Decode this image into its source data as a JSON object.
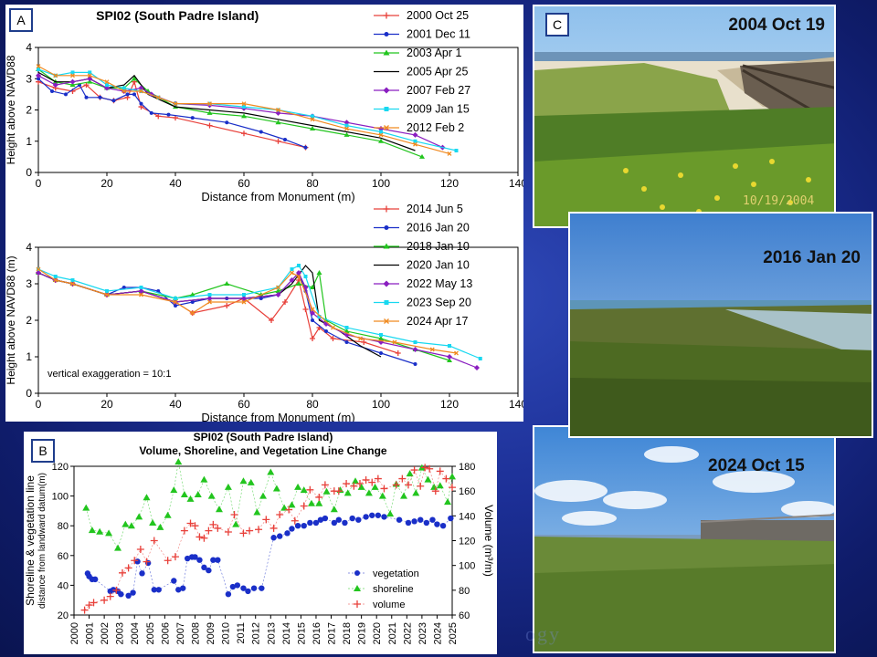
{
  "panels": {
    "a": "A",
    "b": "B",
    "c": "C"
  },
  "photos": [
    {
      "label": "2004 Oct 19",
      "stamp": "10/19/2004"
    },
    {
      "label": "2016 Jan 20",
      "stamp": ""
    },
    {
      "label": "2024 Oct 15",
      "stamp": ""
    }
  ],
  "watermark": "ogy",
  "chart_data": [
    {
      "type": "line",
      "title": "SPI02 (South Padre Island)",
      "xlabel": "Distance from Monument (m)",
      "ylabel": "Height above NAVD88",
      "xlim": [
        0,
        140
      ],
      "ylim": [
        0,
        4
      ],
      "xticks": [
        0,
        20,
        40,
        60,
        80,
        100,
        120,
        140
      ],
      "yticks": [
        0,
        1,
        2,
        3,
        4
      ],
      "legend_position": "right",
      "series": [
        {
          "name": "2000 Oct 25",
          "color": "#e8403a",
          "marker": "plus",
          "x": [
            0,
            5,
            10,
            14,
            18,
            22,
            26,
            28,
            30,
            35,
            40,
            50,
            60,
            70,
            78
          ],
          "y": [
            2.9,
            2.7,
            2.6,
            2.8,
            2.4,
            2.3,
            2.4,
            2.9,
            2.1,
            1.8,
            1.75,
            1.5,
            1.25,
            1.0,
            0.8
          ]
        },
        {
          "name": "2001 Dec 11",
          "color": "#1a2fc8",
          "marker": "circle",
          "x": [
            0,
            4,
            8,
            12,
            14,
            18,
            22,
            26,
            28,
            30,
            33,
            38,
            45,
            55,
            65,
            72,
            78
          ],
          "y": [
            3.0,
            2.6,
            2.5,
            2.8,
            2.4,
            2.4,
            2.3,
            2.5,
            2.5,
            2.2,
            1.9,
            1.85,
            1.75,
            1.6,
            1.3,
            1.05,
            0.8
          ]
        },
        {
          "name": "2003 Apr 1",
          "color": "#22c51e",
          "marker": "triangle",
          "x": [
            0,
            5,
            10,
            15,
            20,
            25,
            28,
            32,
            40,
            50,
            60,
            70,
            80,
            90,
            100,
            112
          ],
          "y": [
            3.3,
            2.9,
            2.8,
            2.9,
            2.7,
            2.7,
            3.0,
            2.6,
            2.1,
            1.9,
            1.8,
            1.6,
            1.4,
            1.2,
            1.0,
            0.5
          ]
        },
        {
          "name": "2005 Apr 25",
          "color": "#000000",
          "marker": "none",
          "x": [
            0,
            5,
            10,
            15,
            20,
            25,
            28,
            32,
            40,
            50,
            60,
            70,
            80,
            90,
            100,
            110
          ],
          "y": [
            3.2,
            2.9,
            2.9,
            3.0,
            2.7,
            2.8,
            3.1,
            2.5,
            2.1,
            2.0,
            1.9,
            1.7,
            1.5,
            1.3,
            1.1,
            0.7
          ]
        },
        {
          "name": "2007 Feb 27",
          "color": "#8a1ec0",
          "marker": "diamond",
          "x": [
            0,
            5,
            10,
            15,
            20,
            25,
            30,
            33,
            40,
            50,
            60,
            70,
            80,
            90,
            100,
            110,
            118
          ],
          "y": [
            3.1,
            2.8,
            2.9,
            3.0,
            2.7,
            2.6,
            2.7,
            2.5,
            2.2,
            2.15,
            2.05,
            1.9,
            1.8,
            1.6,
            1.4,
            1.2,
            0.8
          ]
        },
        {
          "name": "2009 Jan 15",
          "color": "#18d8f0",
          "marker": "square",
          "x": [
            0,
            5,
            10,
            15,
            20,
            25,
            30,
            35,
            40,
            50,
            60,
            70,
            80,
            90,
            100,
            110,
            122
          ],
          "y": [
            3.3,
            3.1,
            3.2,
            3.2,
            2.8,
            2.7,
            2.6,
            2.4,
            2.2,
            2.2,
            2.1,
            2.0,
            1.8,
            1.5,
            1.3,
            1.0,
            0.7
          ]
        },
        {
          "name": "2012 Feb 2",
          "color": "#f08a20",
          "marker": "x",
          "x": [
            0,
            5,
            10,
            15,
            20,
            25,
            30,
            35,
            40,
            50,
            60,
            70,
            80,
            90,
            100,
            110,
            120
          ],
          "y": [
            3.4,
            3.1,
            3.1,
            3.1,
            2.9,
            2.6,
            2.6,
            2.4,
            2.2,
            2.2,
            2.2,
            2.0,
            1.7,
            1.4,
            1.2,
            0.9,
            0.6
          ]
        }
      ]
    },
    {
      "type": "line",
      "title": "",
      "xlabel": "Distance from Monument (m)",
      "ylabel": "Height above NAVD88 (m)",
      "xlim": [
        0,
        140
      ],
      "ylim": [
        0,
        4
      ],
      "xticks": [
        0,
        20,
        40,
        60,
        80,
        100,
        120,
        140
      ],
      "yticks": [
        0,
        1,
        2,
        3,
        4
      ],
      "annotation": "vertical exaggeration = 10:1",
      "legend_position": "right",
      "series": [
        {
          "name": "2014 Jun 5",
          "color": "#e8403a",
          "marker": "plus",
          "x": [
            0,
            5,
            10,
            20,
            30,
            40,
            45,
            55,
            60,
            68,
            72,
            76,
            78,
            80,
            82,
            86,
            95,
            105
          ],
          "y": [
            3.3,
            3.1,
            3.0,
            2.7,
            2.8,
            2.5,
            2.2,
            2.4,
            2.6,
            2.0,
            2.5,
            3.1,
            2.3,
            1.5,
            1.8,
            1.5,
            1.4,
            1.1
          ]
        },
        {
          "name": "2016 Jan 20",
          "color": "#1a2fc8",
          "marker": "circle",
          "x": [
            0,
            5,
            10,
            20,
            25,
            30,
            35,
            40,
            45,
            50,
            55,
            60,
            65,
            70,
            74,
            76,
            78,
            80,
            84,
            90,
            100,
            110
          ],
          "y": [
            3.3,
            3.1,
            3.0,
            2.7,
            2.9,
            2.9,
            2.8,
            2.4,
            2.5,
            2.6,
            2.6,
            2.6,
            2.6,
            2.7,
            3.1,
            3.3,
            2.8,
            2.0,
            1.7,
            1.4,
            1.1,
            0.8
          ]
        },
        {
          "name": "2018 Jan 10",
          "color": "#22c51e",
          "marker": "triangle",
          "x": [
            0,
            5,
            10,
            20,
            30,
            40,
            45,
            55,
            65,
            70,
            76,
            80,
            82,
            84,
            90,
            100,
            110,
            120
          ],
          "y": [
            3.3,
            3.1,
            3.0,
            2.7,
            2.8,
            2.6,
            2.7,
            3.0,
            2.7,
            2.8,
            3.0,
            2.9,
            3.3,
            2.0,
            1.7,
            1.5,
            1.2,
            0.9
          ]
        },
        {
          "name": "2020 Jan 10",
          "color": "#000000",
          "marker": "none",
          "x": [
            0,
            5,
            10,
            20,
            30,
            40,
            50,
            60,
            70,
            74,
            78,
            80,
            82,
            88,
            94,
            100
          ],
          "y": [
            3.3,
            3.1,
            3.0,
            2.7,
            2.8,
            2.5,
            2.6,
            2.6,
            2.7,
            3.0,
            3.5,
            3.3,
            2.0,
            1.7,
            1.3,
            1.0
          ]
        },
        {
          "name": "2022 May 13",
          "color": "#8a1ec0",
          "marker": "diamond",
          "x": [
            0,
            5,
            10,
            20,
            30,
            40,
            50,
            60,
            70,
            74,
            76,
            78,
            80,
            84,
            90,
            100,
            110,
            120,
            128
          ],
          "y": [
            3.3,
            3.1,
            3.0,
            2.7,
            2.8,
            2.5,
            2.6,
            2.6,
            2.7,
            3.1,
            3.3,
            2.9,
            2.2,
            1.9,
            1.6,
            1.4,
            1.2,
            1.0,
            0.7
          ]
        },
        {
          "name": "2023 Sep 20",
          "color": "#18d8f0",
          "marker": "square",
          "x": [
            0,
            5,
            10,
            20,
            30,
            40,
            50,
            60,
            70,
            74,
            76,
            78,
            82,
            90,
            100,
            110,
            120,
            129
          ],
          "y": [
            3.4,
            3.2,
            3.1,
            2.8,
            2.9,
            2.6,
            2.7,
            2.7,
            2.9,
            3.4,
            3.5,
            3.2,
            2.1,
            1.8,
            1.6,
            1.4,
            1.3,
            0.95
          ]
        },
        {
          "name": "2024 Apr 17",
          "color": "#f08a20",
          "marker": "x",
          "x": [
            0,
            5,
            10,
            20,
            30,
            40,
            45,
            50,
            60,
            70,
            74,
            76,
            80,
            86,
            94,
            104,
            115,
            122
          ],
          "y": [
            3.4,
            3.1,
            3.0,
            2.7,
            2.7,
            2.5,
            2.2,
            2.5,
            2.5,
            2.9,
            3.3,
            3.2,
            2.3,
            1.8,
            1.5,
            1.4,
            1.2,
            1.1
          ]
        }
      ]
    },
    {
      "type": "scatter",
      "title": "SPI02 (South Padre Island)",
      "subtitle": "Volume, Shoreline, and Vegetation Line Change",
      "xlabel": "",
      "ylabel": "Shoreline & vegetation line",
      "ylabel2": "distance from landward datum(m)",
      "y2label": "Volume (m³/m)",
      "xlim": [
        2000,
        2025
      ],
      "ylim": [
        20,
        120
      ],
      "y2lim": [
        60,
        180
      ],
      "xticks": [
        2000,
        2001,
        2002,
        2003,
        2004,
        2005,
        2006,
        2007,
        2008,
        2009,
        2010,
        2011,
        2012,
        2013,
        2014,
        2015,
        2016,
        2017,
        2018,
        2019,
        2020,
        2021,
        2022,
        2023,
        2024,
        2025
      ],
      "yticks": [
        20,
        40,
        60,
        80,
        100,
        120
      ],
      "y2ticks": [
        60,
        80,
        100,
        120,
        140,
        160,
        180
      ],
      "legend_position": "lower-right",
      "series": [
        {
          "name": "vegetation",
          "color": "#1a2fc8",
          "marker": "circle",
          "axis": "left",
          "x": [
            2000.9,
            2001.0,
            2001.2,
            2001.4,
            2002.4,
            2002.6,
            2002.9,
            2003.1,
            2003.6,
            2003.9,
            2004.2,
            2004.5,
            2004.9,
            2005.3,
            2005.6,
            2006.6,
            2006.9,
            2007.2,
            2007.5,
            2007.8,
            2008.0,
            2008.3,
            2008.6,
            2008.9,
            2009.2,
            2009.5,
            2010.2,
            2010.5,
            2010.8,
            2011.2,
            2011.5,
            2011.9,
            2012.4,
            2013.2,
            2013.6,
            2014.1,
            2014.4,
            2014.8,
            2015.2,
            2015.6,
            2016.0,
            2016.3,
            2016.6,
            2017.2,
            2017.5,
            2017.9,
            2018.4,
            2018.8,
            2019.3,
            2019.7,
            2020.1,
            2020.5,
            2021.5,
            2022.1,
            2022.5,
            2022.9,
            2023.3,
            2023.7,
            2024.0,
            2024.4,
            2024.9
          ],
          "y": [
            48,
            46,
            44,
            44,
            36,
            37,
            36,
            34,
            33,
            35,
            56,
            48,
            55,
            37,
            37,
            43,
            37,
            38,
            58,
            59,
            59,
            57,
            52,
            50,
            57,
            57,
            34,
            39,
            40,
            38,
            36,
            38,
            38,
            72,
            73,
            75,
            78,
            80,
            80,
            82,
            82,
            84,
            85,
            82,
            84,
            82,
            85,
            84,
            86,
            87,
            87,
            86,
            84,
            82,
            83,
            84,
            82,
            84,
            81,
            80,
            85
          ]
        },
        {
          "name": "shoreline",
          "color": "#22c51e",
          "marker": "triangle",
          "axis": "left",
          "x": [
            2000.8,
            2001.2,
            2001.7,
            2002.3,
            2002.9,
            2003.4,
            2003.8,
            2004.3,
            2004.8,
            2005.2,
            2005.7,
            2006.2,
            2006.6,
            2006.9,
            2007.3,
            2007.7,
            2008.2,
            2008.6,
            2009.1,
            2009.6,
            2010.2,
            2010.7,
            2011.2,
            2011.7,
            2012.1,
            2012.5,
            2013.0,
            2013.4,
            2013.9,
            2014.4,
            2014.8,
            2015.2,
            2015.7,
            2016.2,
            2016.7,
            2017.2,
            2017.6,
            2018.1,
            2018.6,
            2019.0,
            2019.5,
            2019.9,
            2020.4,
            2020.9,
            2021.3,
            2021.8,
            2022.2,
            2022.6,
            2023.0,
            2023.4,
            2023.8,
            2024.2,
            2024.7,
            2025.0
          ],
          "y": [
            92,
            77,
            76,
            75,
            65,
            81,
            80,
            86,
            99,
            82,
            79,
            87,
            104,
            123,
            101,
            98,
            101,
            111,
            100,
            91,
            106,
            81,
            110,
            109,
            89,
            100,
            116,
            105,
            92,
            94,
            106,
            104,
            95,
            95,
            103,
            91,
            104,
            102,
            110,
            106,
            102,
            106,
            100,
            88,
            108,
            100,
            115,
            102,
            119,
            111,
            106,
            107,
            96,
            113
          ]
        },
        {
          "name": "volume",
          "color": "#e8403a",
          "marker": "plus",
          "axis": "right",
          "x": [
            2000.7,
            2001.0,
            2001.3,
            2002.0,
            2002.4,
            2002.8,
            2003.2,
            2003.6,
            2004.0,
            2004.4,
            2004.8,
            2005.3,
            2006.2,
            2006.7,
            2007.3,
            2007.7,
            2008.0,
            2008.3,
            2008.6,
            2008.9,
            2009.2,
            2009.5,
            2010.2,
            2010.6,
            2011.2,
            2011.6,
            2012.2,
            2012.7,
            2013.2,
            2013.6,
            2014.2,
            2014.6,
            2015.2,
            2015.6,
            2016.2,
            2016.6,
            2017.2,
            2017.5,
            2018.0,
            2018.5,
            2018.9,
            2019.3,
            2019.7,
            2020.1,
            2020.5,
            2021.3,
            2021.7,
            2022.1,
            2022.5,
            2022.9,
            2023.2,
            2023.5,
            2023.9,
            2024.2,
            2024.6,
            2025.0
          ],
          "y": [
            64,
            68,
            70,
            72,
            75,
            80,
            94,
            98,
            104,
            113,
            103,
            120,
            104,
            107,
            128,
            134,
            132,
            123,
            122,
            128,
            133,
            130,
            127,
            141,
            126,
            128,
            129,
            137,
            130,
            141,
            145,
            136,
            148,
            161,
            155,
            165,
            160,
            160,
            166,
            164,
            166,
            169,
            167,
            170,
            162,
            165,
            170,
            165,
            177,
            164,
            179,
            178,
            160,
            176,
            170,
            163
          ]
        }
      ]
    }
  ]
}
